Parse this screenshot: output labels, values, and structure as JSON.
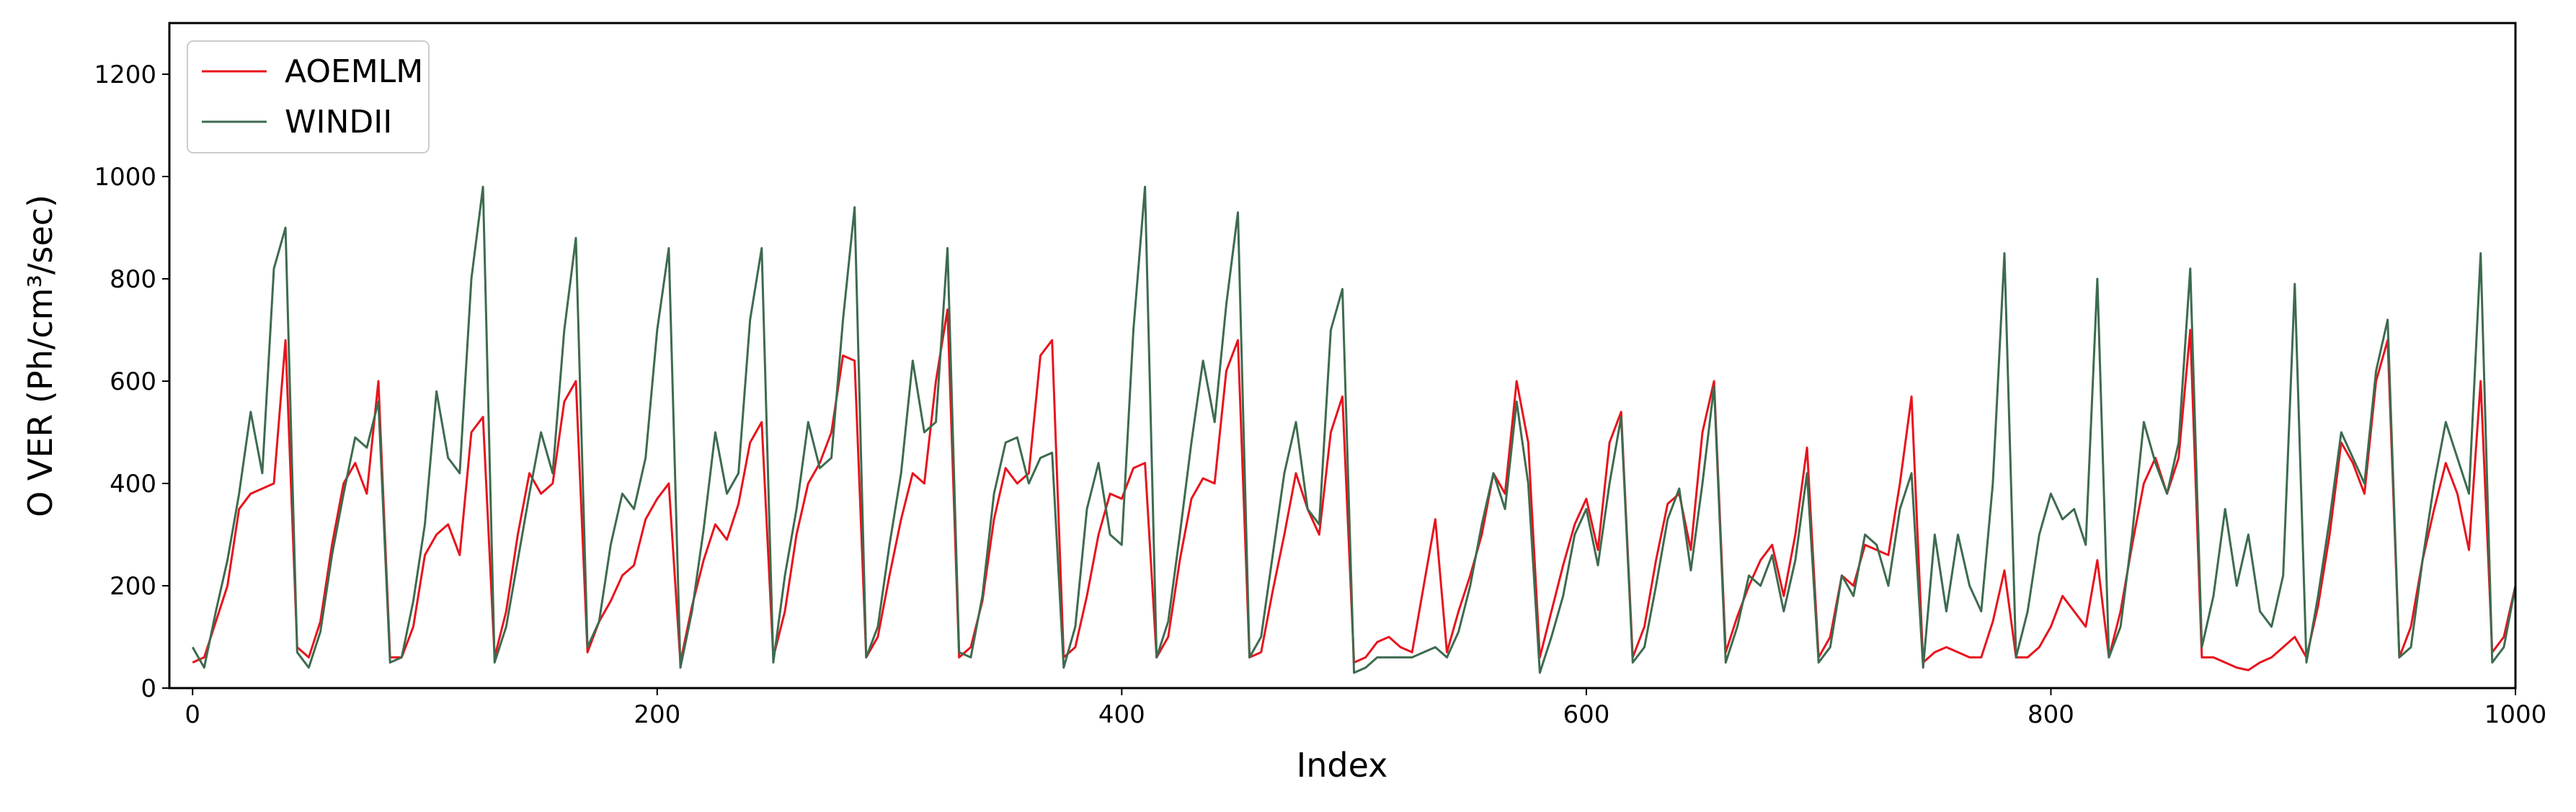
{
  "chart_data": {
    "type": "line",
    "x_label": "Index",
    "y_label": "O VER (Ph/cm³/sec)",
    "x": [
      0,
      5,
      10,
      15,
      20,
      25,
      30,
      35,
      40,
      45,
      50,
      55,
      60,
      65,
      70,
      75,
      80,
      85,
      90,
      95,
      100,
      105,
      110,
      115,
      120,
      125,
      130,
      135,
      140,
      145,
      150,
      155,
      160,
      165,
      170,
      175,
      180,
      185,
      190,
      195,
      200,
      205,
      210,
      215,
      220,
      225,
      230,
      235,
      240,
      245,
      250,
      255,
      260,
      265,
      270,
      275,
      280,
      285,
      290,
      295,
      300,
      305,
      310,
      315,
      320,
      325,
      330,
      335,
      340,
      345,
      350,
      355,
      360,
      365,
      370,
      375,
      380,
      385,
      390,
      395,
      400,
      405,
      410,
      415,
      420,
      425,
      430,
      435,
      440,
      445,
      450,
      455,
      460,
      465,
      470,
      475,
      480,
      485,
      490,
      495,
      500,
      505,
      510,
      515,
      520,
      525,
      530,
      535,
      540,
      545,
      550,
      555,
      560,
      565,
      570,
      575,
      580,
      585,
      590,
      595,
      600,
      605,
      610,
      615,
      620,
      625,
      630,
      635,
      640,
      645,
      650,
      655,
      660,
      665,
      670,
      675,
      680,
      685,
      690,
      695,
      700,
      705,
      710,
      715,
      720,
      725,
      730,
      735,
      740,
      745,
      750,
      755,
      760,
      765,
      770,
      775,
      780,
      785,
      790,
      795,
      800,
      805,
      810,
      815,
      820,
      825,
      830,
      835,
      840,
      845,
      850,
      855,
      860,
      865,
      870,
      875,
      880,
      885,
      890,
      895,
      900,
      905,
      910,
      915,
      920,
      925,
      930,
      935,
      940,
      945,
      950,
      955,
      960,
      965,
      970,
      975,
      980,
      985,
      990,
      995,
      1000
    ],
    "series": [
      {
        "name": "AOEMLM",
        "color": "#e8131c",
        "values": [
          50,
          60,
          130,
          200,
          350,
          380,
          390,
          400,
          680,
          80,
          60,
          130,
          280,
          400,
          440,
          380,
          600,
          60,
          60,
          120,
          260,
          300,
          320,
          260,
          500,
          530,
          60,
          150,
          300,
          420,
          380,
          400,
          560,
          600,
          70,
          130,
          170,
          220,
          240,
          330,
          370,
          400,
          50,
          160,
          250,
          320,
          290,
          360,
          480,
          520,
          60,
          150,
          300,
          400,
          440,
          500,
          650,
          640,
          60,
          100,
          220,
          330,
          420,
          400,
          600,
          740,
          60,
          80,
          170,
          330,
          430,
          400,
          420,
          650,
          680,
          60,
          80,
          180,
          300,
          380,
          370,
          430,
          440,
          60,
          100,
          250,
          370,
          410,
          400,
          620,
          680,
          60,
          70,
          190,
          300,
          420,
          350,
          300,
          500,
          570,
          50,
          60,
          90,
          100,
          80,
          70,
          200,
          330,
          70,
          150,
          220,
          300,
          420,
          380,
          600,
          480,
          60,
          150,
          240,
          320,
          370,
          270,
          480,
          540,
          60,
          120,
          250,
          360,
          380,
          270,
          500,
          600,
          70,
          140,
          200,
          250,
          280,
          180,
          300,
          470,
          60,
          100,
          220,
          200,
          280,
          270,
          260,
          400,
          570,
          50,
          70,
          80,
          70,
          60,
          60,
          130,
          230,
          60,
          60,
          80,
          120,
          180,
          150,
          120,
          250,
          60,
          150,
          280,
          400,
          450,
          380,
          450,
          700,
          60,
          60,
          50,
          40,
          35,
          50,
          60,
          80,
          100,
          60,
          160,
          300,
          480,
          440,
          380,
          600,
          680,
          60,
          120,
          250,
          350,
          440,
          380,
          270,
          600,
          70,
          100,
          200
        ]
      },
      {
        "name": "WINDII",
        "color": "#3d6b4f",
        "values": [
          80,
          40,
          150,
          250,
          380,
          540,
          420,
          820,
          900,
          70,
          40,
          110,
          260,
          380,
          490,
          470,
          560,
          50,
          60,
          170,
          320,
          580,
          450,
          420,
          800,
          980,
          50,
          120,
          250,
          380,
          500,
          420,
          700,
          880,
          80,
          130,
          280,
          380,
          350,
          450,
          700,
          860,
          40,
          150,
          310,
          500,
          380,
          420,
          720,
          860,
          50,
          220,
          350,
          520,
          430,
          450,
          720,
          940,
          60,
          120,
          280,
          420,
          640,
          500,
          520,
          860,
          70,
          60,
          180,
          380,
          480,
          490,
          400,
          450,
          460,
          40,
          120,
          350,
          440,
          300,
          280,
          700,
          980,
          60,
          130,
          300,
          480,
          640,
          520,
          750,
          930,
          60,
          100,
          260,
          420,
          520,
          350,
          320,
          700,
          780,
          30,
          40,
          60,
          60,
          60,
          60,
          70,
          80,
          60,
          110,
          200,
          320,
          420,
          350,
          560,
          400,
          30,
          100,
          180,
          300,
          350,
          240,
          400,
          530,
          50,
          80,
          200,
          330,
          390,
          230,
          400,
          590,
          50,
          120,
          220,
          200,
          260,
          150,
          250,
          420,
          50,
          80,
          220,
          180,
          300,
          280,
          200,
          350,
          420,
          40,
          300,
          150,
          300,
          200,
          150,
          400,
          850,
          60,
          150,
          300,
          380,
          330,
          350,
          280,
          800,
          60,
          120,
          300,
          520,
          440,
          380,
          480,
          820,
          80,
          180,
          350,
          200,
          300,
          150,
          120,
          220,
          790,
          50,
          180,
          330,
          500,
          450,
          400,
          620,
          720,
          60,
          80,
          250,
          400,
          520,
          450,
          380,
          850,
          50,
          80,
          200
        ]
      }
    ],
    "xlim": [
      -10,
      1000
    ],
    "ylim": [
      0,
      1300
    ],
    "xticks": [
      0,
      200,
      400,
      600,
      800,
      1000
    ],
    "yticks": [
      0,
      200,
      400,
      600,
      800,
      1000,
      1200
    ],
    "grid": false,
    "legend": "upper left"
  }
}
